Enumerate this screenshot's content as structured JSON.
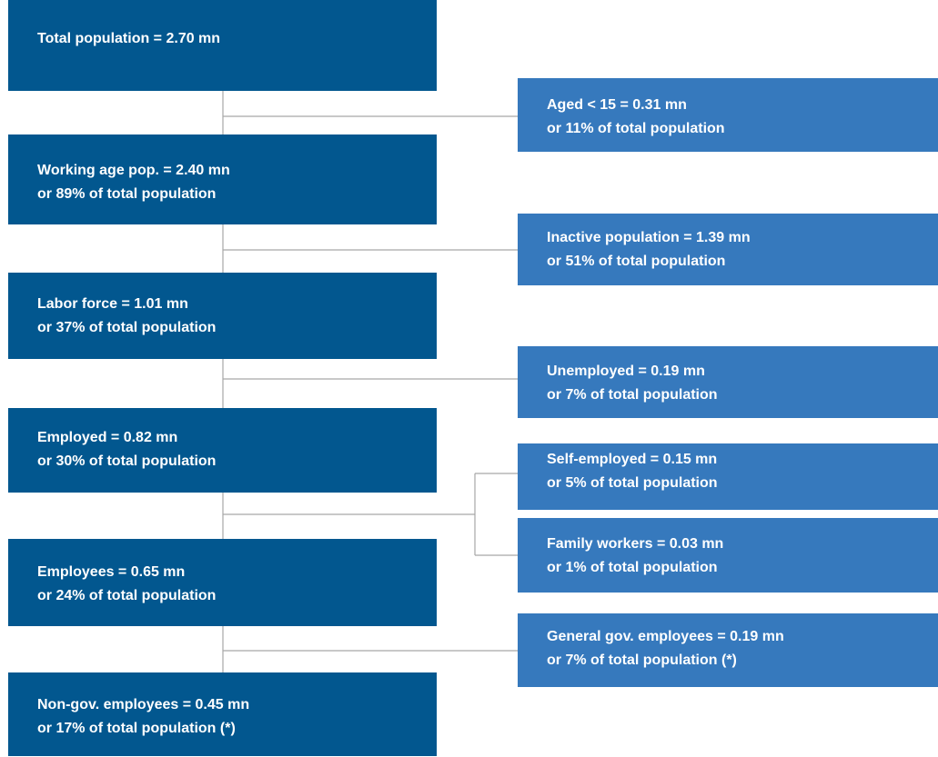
{
  "nodes": [
    {
      "lines": [
        "Total population = 2.70 mn"
      ]
    },
    {
      "lines": [
        "Aged < 15 = 0.31 mn",
        "or 11% of total population"
      ]
    },
    {
      "lines": [
        "Working age pop. = 2.40 mn",
        "or 89% of total population"
      ]
    },
    {
      "lines": [
        "Inactive population = 1.39 mn",
        "or 51% of total population"
      ]
    },
    {
      "lines": [
        "Labor force = 1.01 mn",
        "or 37% of total population"
      ]
    },
    {
      "lines": [
        "Unemployed = 0.19 mn",
        "or 7% of total population"
      ]
    },
    {
      "lines": [
        "Employed = 0.82 mn",
        "or 30% of total population"
      ]
    },
    {
      "lines": [
        "Self-employed = 0.15 mn",
        "or 5% of total population"
      ]
    },
    {
      "lines": [
        "Family workers = 0.03 mn",
        "or 1% of total population"
      ]
    },
    {
      "lines": [
        "Employees = 0.65 mn",
        "or 24% of total population"
      ]
    },
    {
      "lines": [
        "General gov. employees = 0.19 mn",
        "or 7% of total population (*)"
      ]
    },
    {
      "lines": [
        "Non-gov. employees = 0.45 mn",
        "or 17% of total population (*)"
      ]
    }
  ]
}
